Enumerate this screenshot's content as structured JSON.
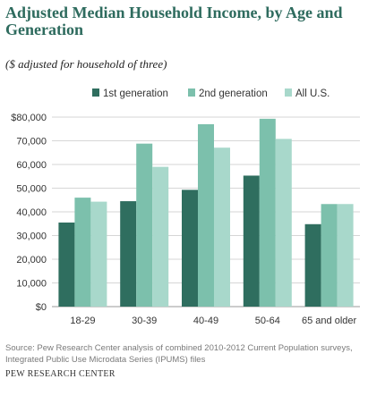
{
  "title": "Adjusted Median Household Income, by Age and Generation",
  "subtitle": "($ adjusted for household of three)",
  "source": "Source: Pew Research Center analysis of combined 2010-2012 Current Population surveys, Integrated Public Use Microdata Series (IPUMS) files",
  "credit": "PEW RESEARCH CENTER",
  "chart_data": {
    "type": "bar",
    "title": "Adjusted Median Household Income, by Age and Generation",
    "subtitle": "($ adjusted for household of three)",
    "xlabel": "",
    "ylabel": "",
    "categories": [
      "18-29",
      "30-39",
      "40-49",
      "50-64",
      "65 and older"
    ],
    "series": [
      {
        "name": "1st generation",
        "color": "#2f6e5f",
        "values": [
          35500,
          44500,
          49300,
          55300,
          34800
        ]
      },
      {
        "name": "2nd generation",
        "color": "#7cc0ac",
        "values": [
          46000,
          68800,
          77000,
          79300,
          43300
        ]
      },
      {
        "name": "All U.S.",
        "color": "#a8d8cb",
        "values": [
          44300,
          59000,
          67100,
          70800,
          43300
        ]
      }
    ],
    "ylim": [
      0,
      80000
    ],
    "yticks": [
      0,
      10000,
      20000,
      30000,
      40000,
      50000,
      60000,
      70000,
      80000
    ],
    "ytick_labels": [
      "$0",
      "10,000",
      "20,000",
      "30,000",
      "40,000",
      "50,000",
      "60,000",
      "70,000",
      "$80,000"
    ],
    "grid": true,
    "legend_position": "top"
  }
}
